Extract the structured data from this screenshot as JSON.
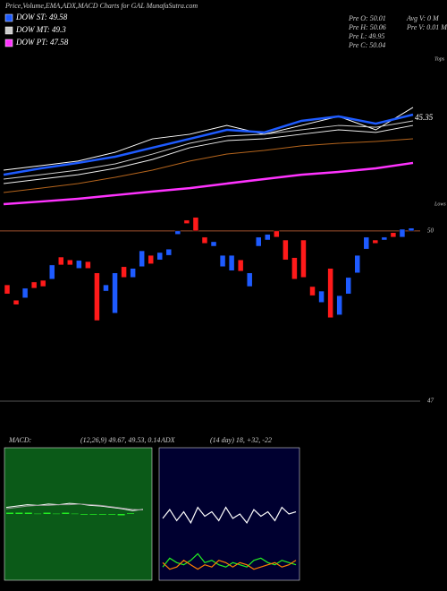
{
  "header": {
    "title": "Price,Volume,EMA,ADX,MACD Charts for GAL MunafaSutra.com",
    "info": [
      "Pre  O: 50.01",
      "Pre  H: 50.06",
      "Pre  L: 49.95",
      "Pre  C: 50.04",
      "Avg V: 0  M",
      "Pre  V: 0.01 M"
    ]
  },
  "chart_data": [
    {
      "type": "line",
      "ylim": [
        40,
        49.3
      ],
      "annotation": "45.35",
      "top_label": "Tops",
      "bottom_label": "Lows",
      "series": [
        {
          "color": "#ffffff",
          "values": [
            42.19,
            42.46,
            42.74,
            43.28,
            44.1,
            44.38,
            44.92,
            44.38,
            44.92,
            45.47,
            44.65,
            46.02
          ]
        },
        {
          "name": "DOW ST: 49.58",
          "color": "#1e5bff",
          "values": [
            41.91,
            42.3,
            42.63,
            43.01,
            43.56,
            44.1,
            44.65,
            44.49,
            45.2,
            45.47,
            45.03,
            45.58
          ]
        },
        {
          "name": "DOW MT: 49.3",
          "color": "#cccccc",
          "values": [
            41.64,
            41.91,
            42.19,
            42.57,
            43.17,
            43.83,
            44.27,
            44.38,
            44.65,
            44.92,
            44.81,
            45.2
          ]
        },
        {
          "color": "#eeeeee",
          "values": [
            41.37,
            41.64,
            41.91,
            42.3,
            42.84,
            43.56,
            43.99,
            44.1,
            44.38,
            44.65,
            44.49,
            44.92
          ]
        },
        {
          "color": "#b5651d",
          "values": [
            40.82,
            41.09,
            41.37,
            41.75,
            42.19,
            42.74,
            43.17,
            43.39,
            43.67,
            43.83,
            43.94,
            44.1
          ]
        },
        {
          "name": "DOW PT: 47.58",
          "color": "#ff33ff",
          "values": [
            40.11,
            40.27,
            40.44,
            40.66,
            40.88,
            41.09,
            41.37,
            41.64,
            41.91,
            42.08,
            42.3,
            42.63
          ]
        }
      ]
    },
    {
      "type": "candlestick",
      "ylim": [
        47,
        50.44
      ],
      "yticks": [
        47,
        50
      ],
      "grid_colors": [
        "#555555",
        "#a0522d"
      ],
      "up_color": "#1e5bff",
      "down_color": "#ff1a1a",
      "open": [
        49.05,
        48.78,
        48.82,
        49.1,
        49.13,
        49.15,
        49.54,
        49.49,
        49.34,
        49.46,
        49.26,
        48.94,
        48.55,
        49.37,
        49.18,
        49.37,
        49.57,
        49.49,
        49.57,
        49.94,
        50.19,
        50.24,
        49.89,
        49.73,
        49.37,
        49.3,
        49.49,
        49.02,
        49.73,
        49.84,
        50.0,
        49.84,
        49.53,
        49.84,
        49.02,
        48.74,
        49.34,
        48.52,
        48.89,
        49.26,
        49.68,
        49.84,
        49.84,
        49.97,
        49.89,
        50.0
      ],
      "close": [
        48.89,
        48.7,
        48.99,
        48.99,
        49.02,
        49.4,
        49.4,
        49.4,
        49.48,
        49.34,
        48.42,
        49.05,
        49.26,
        49.18,
        49.34,
        49.65,
        49.42,
        49.62,
        49.68,
        50.0,
        50.13,
        50.0,
        49.78,
        49.81,
        49.57,
        49.57,
        49.29,
        49.26,
        49.89,
        49.94,
        49.89,
        49.49,
        49.15,
        49.18,
        48.86,
        48.94,
        48.47,
        48.86,
        49.18,
        49.57,
        49.89,
        49.78,
        49.89,
        49.89,
        50.03,
        50.05
      ]
    },
    {
      "type": "macd",
      "title": "MACD:",
      "subtitle": "(12,26,9) 49.67, 49.53, 0.14",
      "ylim": [
        -1,
        1
      ],
      "background": "#0b5a18",
      "hist_color": "#22ee22",
      "histogram": [
        0.02,
        0.02,
        0.02,
        0.005,
        0.02,
        0.005,
        0.02,
        0.005,
        -0.01,
        -0.01,
        -0.01,
        -0.01,
        -0.02,
        0.01
      ],
      "series": [
        {
          "color": "#ffffff",
          "values": [
            0.1,
            0.12,
            0.14,
            0.13,
            0.15,
            0.14,
            0.16,
            0.15,
            0.13,
            0.12,
            0.1,
            0.08,
            0.05,
            0.07
          ]
        },
        {
          "color": "#999999",
          "values": [
            0.08,
            0.1,
            0.12,
            0.13,
            0.13,
            0.14,
            0.14,
            0.15,
            0.14,
            0.13,
            0.11,
            0.09,
            0.07,
            0.06
          ]
        }
      ]
    },
    {
      "type": "adx",
      "title": "ADX",
      "subtitle": "(14 day) 18, +32, -22",
      "ylim": [
        0,
        60
      ],
      "background": "#000030",
      "series": [
        {
          "color": "#ffffff",
          "values": [
            28,
            32,
            27,
            31,
            26,
            33,
            29,
            31,
            27,
            33,
            28,
            30,
            26,
            32,
            29,
            31,
            27,
            33,
            30,
            31
          ]
        },
        {
          "color": "#22ee22",
          "values": [
            6,
            10,
            8,
            7,
            9,
            12,
            8,
            9,
            7,
            6,
            8,
            7,
            6,
            9,
            10,
            8,
            7,
            9,
            8,
            7
          ]
        },
        {
          "color": "#ff7f00",
          "values": [
            8,
            5,
            6,
            9,
            7,
            5,
            7,
            6,
            9,
            8,
            6,
            8,
            7,
            5,
            6,
            7,
            8,
            6,
            7,
            9
          ]
        }
      ]
    }
  ]
}
